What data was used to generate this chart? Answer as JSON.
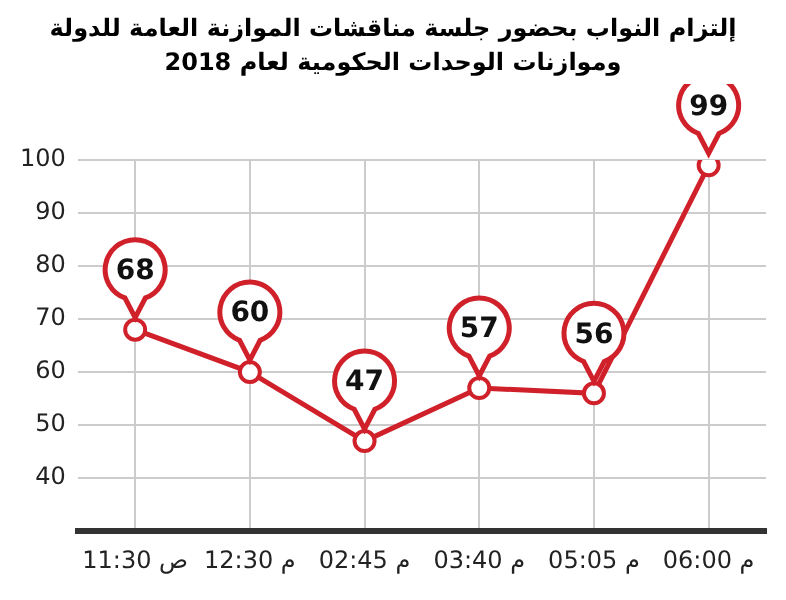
{
  "chart_data": {
    "type": "line",
    "title": "إلتزام النواب بحضور جلسة مناقشات الموازنة العامة للدولة\nوموازنات الوحدات الحكومية لعام 2018",
    "categories": [
      "11:30 ص",
      "12:30 م",
      "02:45 م",
      "03:40 م",
      "05:05 م",
      "06:00 م"
    ],
    "values": [
      68,
      60,
      47,
      57,
      56,
      99
    ],
    "color": "#d0212b",
    "ylim": [
      30,
      100
    ],
    "yticks": [
      40,
      50,
      60,
      70,
      80,
      90,
      100
    ],
    "grid": true,
    "marker": "circle",
    "data_labels": true
  }
}
